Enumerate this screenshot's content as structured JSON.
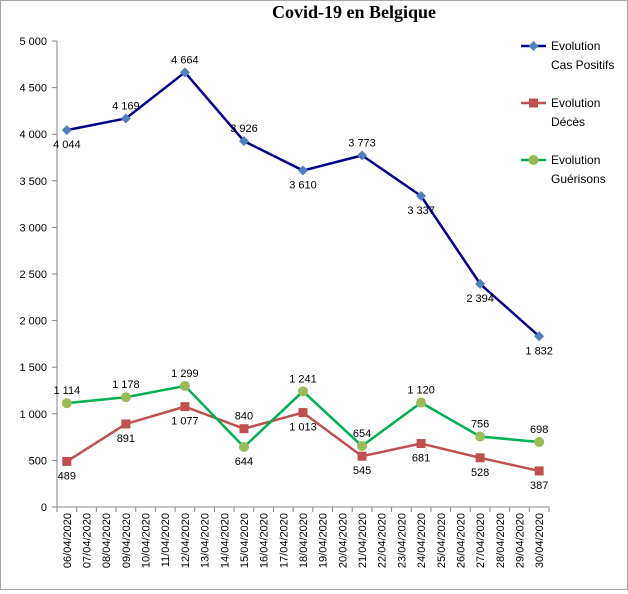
{
  "chart_data": {
    "type": "line",
    "title": "Covid-19 en Belgique",
    "xlabel": "",
    "ylabel": "",
    "ylim": [
      0,
      5000
    ],
    "yticks": [
      "0",
      "500",
      "1 000",
      "1 500",
      "2 000",
      "2 500",
      "3 000",
      "3 500",
      "4 000",
      "4 500",
      "5 000"
    ],
    "grid": false,
    "legend": "right",
    "categories": [
      "06/04/2020",
      "07/04/2020",
      "08/04/2020",
      "09/04/2020",
      "10/04/2020",
      "11/04/2020",
      "12/04/2020",
      "13/04/2020",
      "14/04/2020",
      "15/04/2020",
      "16/04/2020",
      "17/04/2020",
      "18/04/2020",
      "19/04/2020",
      "20/04/2020",
      "21/04/2020",
      "22/04/2020",
      "23/04/2020",
      "24/04/2020",
      "25/04/2020",
      "26/04/2020",
      "27/04/2020",
      "28/04/2020",
      "29/04/2020",
      "30/04/2020"
    ],
    "series": [
      {
        "name": "Evolution Cas Positifs",
        "legend_lines": [
          "Evolution",
          "Cas Positifs"
        ],
        "color": "#00008b",
        "marker": "diamond",
        "marker_color": "#4f81bd",
        "points": [
          {
            "x": "06/04/2020",
            "y": 4044,
            "label": "4 044",
            "pos": "below"
          },
          {
            "x": "09/04/2020",
            "y": 4169,
            "label": "4 169",
            "pos": "above"
          },
          {
            "x": "12/04/2020",
            "y": 4664,
            "label": "4 664",
            "pos": "above"
          },
          {
            "x": "15/04/2020",
            "y": 3926,
            "label": "3 926",
            "pos": "above"
          },
          {
            "x": "18/04/2020",
            "y": 3610,
            "label": "3 610",
            "pos": "below"
          },
          {
            "x": "21/04/2020",
            "y": 3773,
            "label": "3 773",
            "pos": "above"
          },
          {
            "x": "24/04/2020",
            "y": 3337,
            "label": "3 337",
            "pos": "below"
          },
          {
            "x": "27/04/2020",
            "y": 2394,
            "label": "2 394",
            "pos": "below"
          },
          {
            "x": "30/04/2020",
            "y": 1832,
            "label": "1 832",
            "pos": "below"
          }
        ]
      },
      {
        "name": "Evolution Décès",
        "legend_lines": [
          "Evolution",
          "Décès"
        ],
        "color": "#c0504d",
        "marker": "square",
        "marker_color": "#c0504d",
        "points": [
          {
            "x": "06/04/2020",
            "y": 489,
            "label": "489",
            "pos": "below"
          },
          {
            "x": "09/04/2020",
            "y": 891,
            "label": "891",
            "pos": "below"
          },
          {
            "x": "12/04/2020",
            "y": 1077,
            "label": "1 077",
            "pos": "below"
          },
          {
            "x": "15/04/2020",
            "y": 840,
            "label": "840",
            "pos": "above"
          },
          {
            "x": "18/04/2020",
            "y": 1013,
            "label": "1 013",
            "pos": "below"
          },
          {
            "x": "21/04/2020",
            "y": 545,
            "label": "545",
            "pos": "below"
          },
          {
            "x": "24/04/2020",
            "y": 681,
            "label": "681",
            "pos": "below"
          },
          {
            "x": "27/04/2020",
            "y": 528,
            "label": "528",
            "pos": "below"
          },
          {
            "x": "30/04/2020",
            "y": 387,
            "label": "387",
            "pos": "below"
          }
        ]
      },
      {
        "name": "Evolution Guérisons",
        "legend_lines": [
          "Evolution",
          "Guérisons"
        ],
        "color": "#00b050",
        "marker": "circle",
        "marker_color": "#9bbb59",
        "points": [
          {
            "x": "06/04/2020",
            "y": 1114,
            "label": "1 114",
            "pos": "above"
          },
          {
            "x": "09/04/2020",
            "y": 1178,
            "label": "1 178",
            "pos": "above"
          },
          {
            "x": "12/04/2020",
            "y": 1299,
            "label": "1 299",
            "pos": "above"
          },
          {
            "x": "15/04/2020",
            "y": 644,
            "label": "644",
            "pos": "below"
          },
          {
            "x": "18/04/2020",
            "y": 1241,
            "label": "1 241",
            "pos": "above"
          },
          {
            "x": "21/04/2020",
            "y": 654,
            "label": "654",
            "pos": "above"
          },
          {
            "x": "24/04/2020",
            "y": 1120,
            "label": "1 120",
            "pos": "above"
          },
          {
            "x": "27/04/2020",
            "y": 756,
            "label": "756",
            "pos": "above"
          },
          {
            "x": "30/04/2020",
            "y": 698,
            "label": "698",
            "pos": "above"
          }
        ]
      }
    ]
  }
}
